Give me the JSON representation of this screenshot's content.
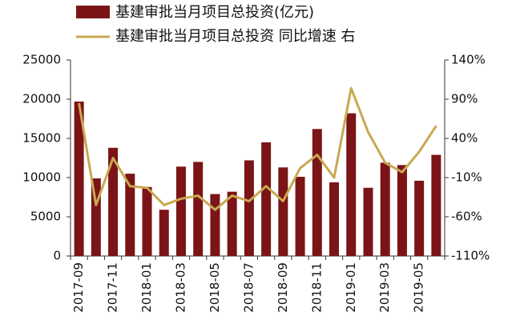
{
  "chart_data": {
    "type": "bar_line",
    "categories": [
      "2017-09",
      null,
      "2017-11",
      null,
      "2018-01",
      null,
      "2018-03",
      null,
      "2018-05",
      null,
      "2018-07",
      null,
      "2018-09",
      null,
      "2018-11",
      null,
      "2019-01",
      null,
      "2019-03",
      null,
      "2019-05",
      null
    ],
    "series": [
      {
        "name": "基建审批当月项目总投资(亿元)",
        "type": "bar",
        "color": "#7b1416",
        "values": [
          19700,
          9900,
          13800,
          10500,
          8800,
          5900,
          11400,
          12000,
          7900,
          8200,
          12200,
          14500,
          11300,
          10100,
          16200,
          9400,
          18200,
          8700,
          11900,
          11600,
          9600,
          12900
        ]
      },
      {
        "name": "基建审批当月项目总投资 同比增速 右",
        "type": "line",
        "color": "#c8a951",
        "axis": "y2",
        "values": [
          85,
          -45,
          15,
          -21,
          -23,
          -45,
          -37,
          -33,
          -51,
          -33,
          -40,
          -21,
          -40,
          2,
          19,
          -10,
          104,
          48,
          9,
          -3,
          23,
          56
        ]
      }
    ],
    "ylim": [
      0,
      25000
    ],
    "yticks": [
      0,
      5000,
      10000,
      15000,
      20000,
      25000
    ],
    "y2lim": [
      -110,
      140
    ],
    "y2ticks": [
      {
        "value": -110,
        "label": "-110%"
      },
      {
        "value": -60,
        "label": "-60%"
      },
      {
        "value": -10,
        "label": "-10%"
      },
      {
        "value": 40,
        "label": "40%"
      },
      {
        "value": 90,
        "label": "90%"
      },
      {
        "value": 140,
        "label": "140%"
      }
    ]
  }
}
